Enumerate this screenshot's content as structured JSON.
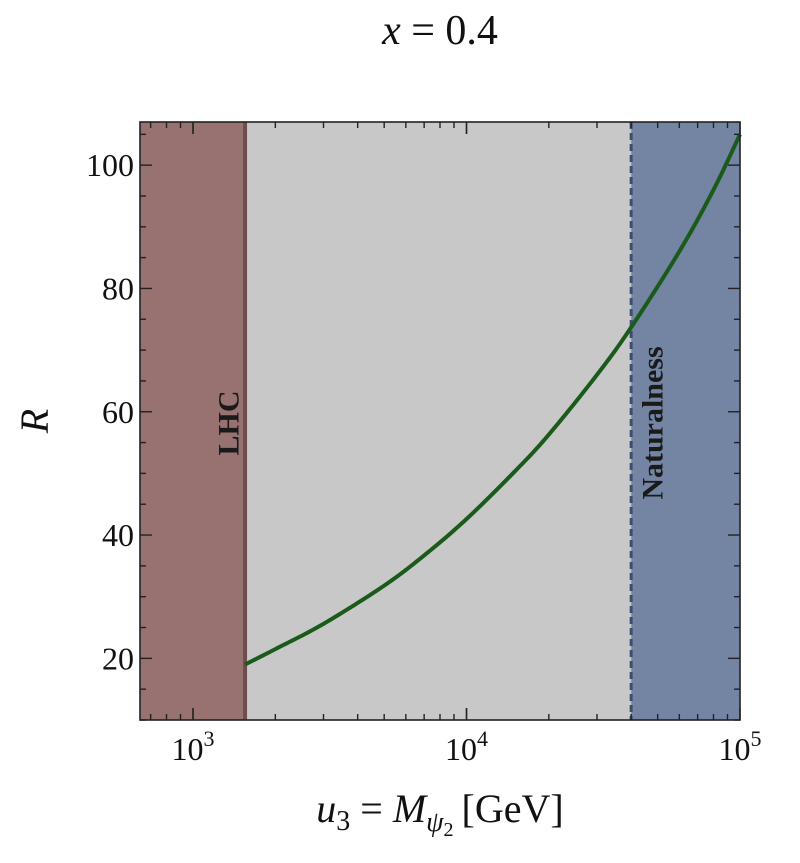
{
  "chart_data": {
    "type": "line",
    "title": {
      "prefix": "x",
      "eq": " = ",
      "value": "0.4"
    },
    "xlabel": {
      "main": "u",
      "main_sub": "3",
      "eq": " = ",
      "mass": "M",
      "mass_sub": "ψ",
      "mass_sub2": "2",
      "unit": "[GeV]"
    },
    "ylabel": "R",
    "x_scale": "log",
    "xlim": [
      640,
      100000
    ],
    "ylim": [
      10,
      107
    ],
    "x_ticks": [
      {
        "value": 1000,
        "base": "10",
        "exp": "3"
      },
      {
        "value": 10000,
        "base": "10",
        "exp": "4"
      },
      {
        "value": 100000,
        "base": "10",
        "exp": "5"
      }
    ],
    "y_ticks": [
      {
        "value": 20,
        "label": "20"
      },
      {
        "value": 40,
        "label": "40"
      },
      {
        "value": 60,
        "label": "60"
      },
      {
        "value": 80,
        "label": "80"
      },
      {
        "value": 100,
        "label": "100"
      }
    ],
    "regions": [
      {
        "name": "LHC",
        "label": "LHC",
        "from": 640,
        "to": 1550,
        "color": "#977270",
        "edge_color": "#6e4e4c",
        "edge_style": "solid"
      },
      {
        "name": "allowed",
        "label": "",
        "from": 1550,
        "to": 40000,
        "color": "#c8c8c8"
      },
      {
        "name": "Naturalness",
        "label": "Naturalness",
        "from": 40000,
        "to": 100000,
        "color": "#7385a3",
        "edge_color": "#3d4d72",
        "edge_style": "dashed"
      }
    ],
    "series": [
      {
        "color": "#1a5a1a",
        "x": [
          1550,
          2000,
          3000,
          5000,
          7000,
          10000,
          15000,
          20000,
          30000,
          40000,
          60000,
          80000,
          100000
        ],
        "y": [
          19,
          21.5,
          25.6,
          31.8,
          36.7,
          42.6,
          50.3,
          56.3,
          66,
          73.7,
          86,
          96,
          105
        ]
      }
    ],
    "grid": false
  }
}
